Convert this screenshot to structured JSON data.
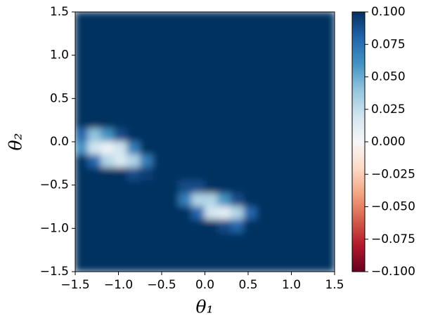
{
  "chart_data": {
    "type": "heatmap",
    "xlabel": "θ₁",
    "ylabel": "θ₂",
    "xlim": [
      -1.5,
      1.5
    ],
    "ylim": [
      -1.5,
      1.5
    ],
    "xticks": [
      {
        "value": -1.5,
        "label": "−1.5"
      },
      {
        "value": -1.0,
        "label": "−1.0"
      },
      {
        "value": -0.5,
        "label": "−0.5"
      },
      {
        "value": 0.0,
        "label": "0.0"
      },
      {
        "value": 0.5,
        "label": "0.5"
      },
      {
        "value": 1.0,
        "label": "1.0"
      },
      {
        "value": 1.5,
        "label": "1.5"
      }
    ],
    "yticks": [
      {
        "value": -1.5,
        "label": "−1.5"
      },
      {
        "value": -1.0,
        "label": "−1.0"
      },
      {
        "value": -0.5,
        "label": "−0.5"
      },
      {
        "value": 0.0,
        "label": "0.0"
      },
      {
        "value": 0.5,
        "label": "0.5"
      },
      {
        "value": 1.0,
        "label": "1.0"
      },
      {
        "value": 1.5,
        "label": "1.5"
      }
    ],
    "clim": [
      -0.1,
      0.1
    ],
    "cticks": [
      {
        "value": -0.1,
        "label": "−0.100"
      },
      {
        "value": -0.075,
        "label": "−0.075"
      },
      {
        "value": -0.05,
        "label": "−0.050"
      },
      {
        "value": -0.025,
        "label": "−0.025"
      },
      {
        "value": 0.0,
        "label": "0.000"
      },
      {
        "value": 0.025,
        "label": "0.025"
      },
      {
        "value": 0.05,
        "label": "0.050"
      },
      {
        "value": 0.075,
        "label": "0.075"
      },
      {
        "value": 0.1,
        "label": "0.100"
      }
    ],
    "colormap_colors": [
      "#67001f",
      "#b2182b",
      "#d6604d",
      "#f4a582",
      "#fddbc7",
      "#f7f7f7",
      "#d1e5f0",
      "#92c5de",
      "#4393c3",
      "#2166ac",
      "#053061"
    ],
    "z": [
      [
        0.1,
        0.1,
        0.1,
        0.1,
        0.1,
        0.1,
        0.1,
        0.1,
        0.1,
        0.1,
        0.1,
        0.1,
        0.1,
        0.1,
        0.1,
        0.1,
        0.1,
        0.1,
        0.1,
        0.1
      ],
      [
        0.1,
        0.1,
        0.1,
        0.1,
        0.1,
        0.1,
        0.1,
        0.1,
        0.1,
        0.1,
        0.1,
        0.1,
        0.1,
        0.1,
        0.1,
        0.1,
        0.1,
        0.1,
        0.1,
        0.1
      ],
      [
        0.1,
        0.1,
        0.1,
        0.1,
        0.1,
        0.1,
        0.1,
        0.1,
        0.1,
        0.1,
        0.1,
        0.1,
        0.1,
        0.1,
        0.1,
        0.1,
        0.1,
        0.1,
        0.1,
        0.1
      ],
      [
        0.1,
        0.1,
        0.1,
        0.1,
        0.1,
        0.1,
        0.1,
        0.1,
        0.1,
        0.1,
        0.1,
        0.1,
        0.1,
        0.1,
        0.1,
        0.1,
        0.1,
        0.1,
        0.1,
        0.1
      ],
      [
        0.1,
        0.1,
        0.1,
        0.1,
        0.1,
        0.1,
        0.1,
        0.1,
        0.1,
        0.1,
        0.1,
        0.1,
        0.1,
        0.1,
        0.1,
        0.1,
        0.1,
        0.1,
        0.1,
        0.1
      ],
      [
        0.1,
        0.1,
        0.1,
        0.1,
        0.1,
        0.1,
        0.1,
        0.1,
        0.1,
        0.1,
        0.1,
        0.1,
        0.1,
        0.1,
        0.1,
        0.1,
        0.1,
        0.1,
        0.1,
        0.1
      ],
      [
        0.1,
        0.1,
        0.1,
        0.1,
        0.1,
        0.1,
        0.1,
        0.1,
        0.1,
        0.1,
        0.1,
        0.1,
        0.1,
        0.1,
        0.1,
        0.1,
        0.1,
        0.1,
        0.1,
        0.1
      ],
      [
        0.1,
        0.1,
        0.1,
        0.1,
        0.1,
        0.1,
        0.1,
        0.1,
        0.1,
        0.1,
        0.1,
        0.1,
        0.1,
        0.1,
        0.1,
        0.1,
        0.1,
        0.1,
        0.1,
        0.1
      ],
      [
        0.1,
        0.1,
        0.1,
        0.1,
        0.1,
        0.1,
        0.1,
        0.1,
        0.1,
        0.1,
        0.1,
        0.1,
        0.1,
        0.1,
        0.1,
        0.1,
        0.1,
        0.1,
        0.1,
        0.1
      ],
      [
        0.08,
        0.04,
        0.06,
        0.09,
        0.1,
        0.1,
        0.1,
        0.1,
        0.1,
        0.1,
        0.1,
        0.1,
        0.1,
        0.1,
        0.1,
        0.1,
        0.1,
        0.1,
        0.1,
        0.1
      ],
      [
        0.06,
        0.02,
        0.005,
        0.02,
        0.07,
        0.1,
        0.1,
        0.1,
        0.1,
        0.1,
        0.1,
        0.1,
        0.1,
        0.1,
        0.1,
        0.1,
        0.1,
        0.1,
        0.1,
        0.1
      ],
      [
        0.1,
        0.08,
        0.03,
        0.015,
        0.03,
        0.07,
        0.1,
        0.1,
        0.1,
        0.1,
        0.1,
        0.1,
        0.1,
        0.1,
        0.1,
        0.1,
        0.1,
        0.1,
        0.1,
        0.1
      ],
      [
        0.1,
        0.1,
        0.1,
        0.1,
        0.09,
        0.095,
        0.1,
        0.1,
        0.1,
        0.1,
        0.1,
        0.1,
        0.1,
        0.1,
        0.1,
        0.1,
        0.1,
        0.1,
        0.1,
        0.1
      ],
      [
        0.1,
        0.1,
        0.1,
        0.1,
        0.1,
        0.1,
        0.1,
        0.1,
        0.09,
        0.09,
        0.1,
        0.1,
        0.1,
        0.1,
        0.1,
        0.1,
        0.1,
        0.1,
        0.1,
        0.1
      ],
      [
        0.1,
        0.1,
        0.1,
        0.1,
        0.1,
        0.1,
        0.1,
        0.1,
        0.07,
        0.03,
        0.03,
        0.06,
        0.09,
        0.1,
        0.1,
        0.1,
        0.1,
        0.1,
        0.1,
        0.1
      ],
      [
        0.1,
        0.1,
        0.1,
        0.1,
        0.1,
        0.1,
        0.1,
        0.1,
        0.1,
        0.08,
        0.02,
        0.01,
        0.03,
        0.08,
        0.1,
        0.1,
        0.1,
        0.1,
        0.1,
        0.1
      ],
      [
        0.1,
        0.1,
        0.1,
        0.1,
        0.1,
        0.1,
        0.1,
        0.1,
        0.1,
        0.1,
        0.1,
        0.09,
        0.08,
        0.1,
        0.1,
        0.1,
        0.1,
        0.1,
        0.1,
        0.1
      ],
      [
        0.1,
        0.1,
        0.1,
        0.1,
        0.1,
        0.1,
        0.1,
        0.1,
        0.1,
        0.1,
        0.1,
        0.1,
        0.1,
        0.1,
        0.1,
        0.1,
        0.1,
        0.1,
        0.1,
        0.1
      ],
      [
        0.1,
        0.1,
        0.1,
        0.1,
        0.1,
        0.1,
        0.1,
        0.1,
        0.1,
        0.1,
        0.1,
        0.1,
        0.1,
        0.1,
        0.1,
        0.1,
        0.1,
        0.1,
        0.1,
        0.1
      ],
      [
        0.1,
        0.1,
        0.1,
        0.1,
        0.1,
        0.1,
        0.1,
        0.1,
        0.1,
        0.1,
        0.1,
        0.1,
        0.1,
        0.1,
        0.1,
        0.1,
        0.1,
        0.1,
        0.1,
        0.1
      ]
    ]
  }
}
